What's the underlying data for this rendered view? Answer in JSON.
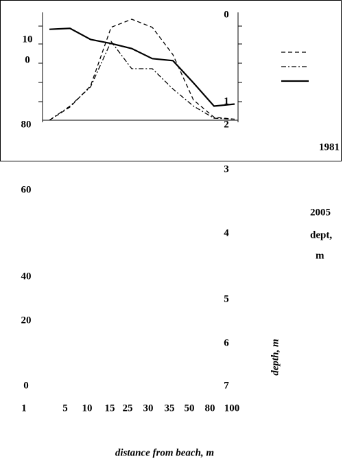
{
  "chart_data": {
    "type": "line",
    "categories": [
      "1",
      "5",
      "10",
      "15",
      "25",
      "30",
      "35",
      "50",
      "80",
      "100"
    ],
    "x_label": "distance from beach, m",
    "y2_label": "depth, m",
    "left_labels": [
      "10",
      "0",
      "80",
      "60",
      "40",
      "20",
      "0"
    ],
    "right_labels": [
      "0",
      "1",
      "2",
      "3",
      "4",
      "5",
      "6",
      "7"
    ],
    "annotations": [
      "1981",
      "2005",
      "dept,",
      "m"
    ],
    "ylim": [
      0,
      100
    ],
    "series": [
      {
        "color": "#000000",
        "dash": "dashed",
        "values": [
          0,
          13,
          34,
          92,
          100,
          92,
          65,
          20,
          3,
          1
        ]
      },
      {
        "color": "#000000",
        "dash": "dashdot",
        "values": [
          0,
          14,
          33,
          78,
          51,
          51,
          31,
          14,
          2,
          1
        ]
      },
      {
        "color": "#000000",
        "dash": "solid",
        "values": [
          90,
          91,
          80,
          76,
          71,
          61,
          59,
          37,
          14,
          16
        ]
      }
    ]
  }
}
